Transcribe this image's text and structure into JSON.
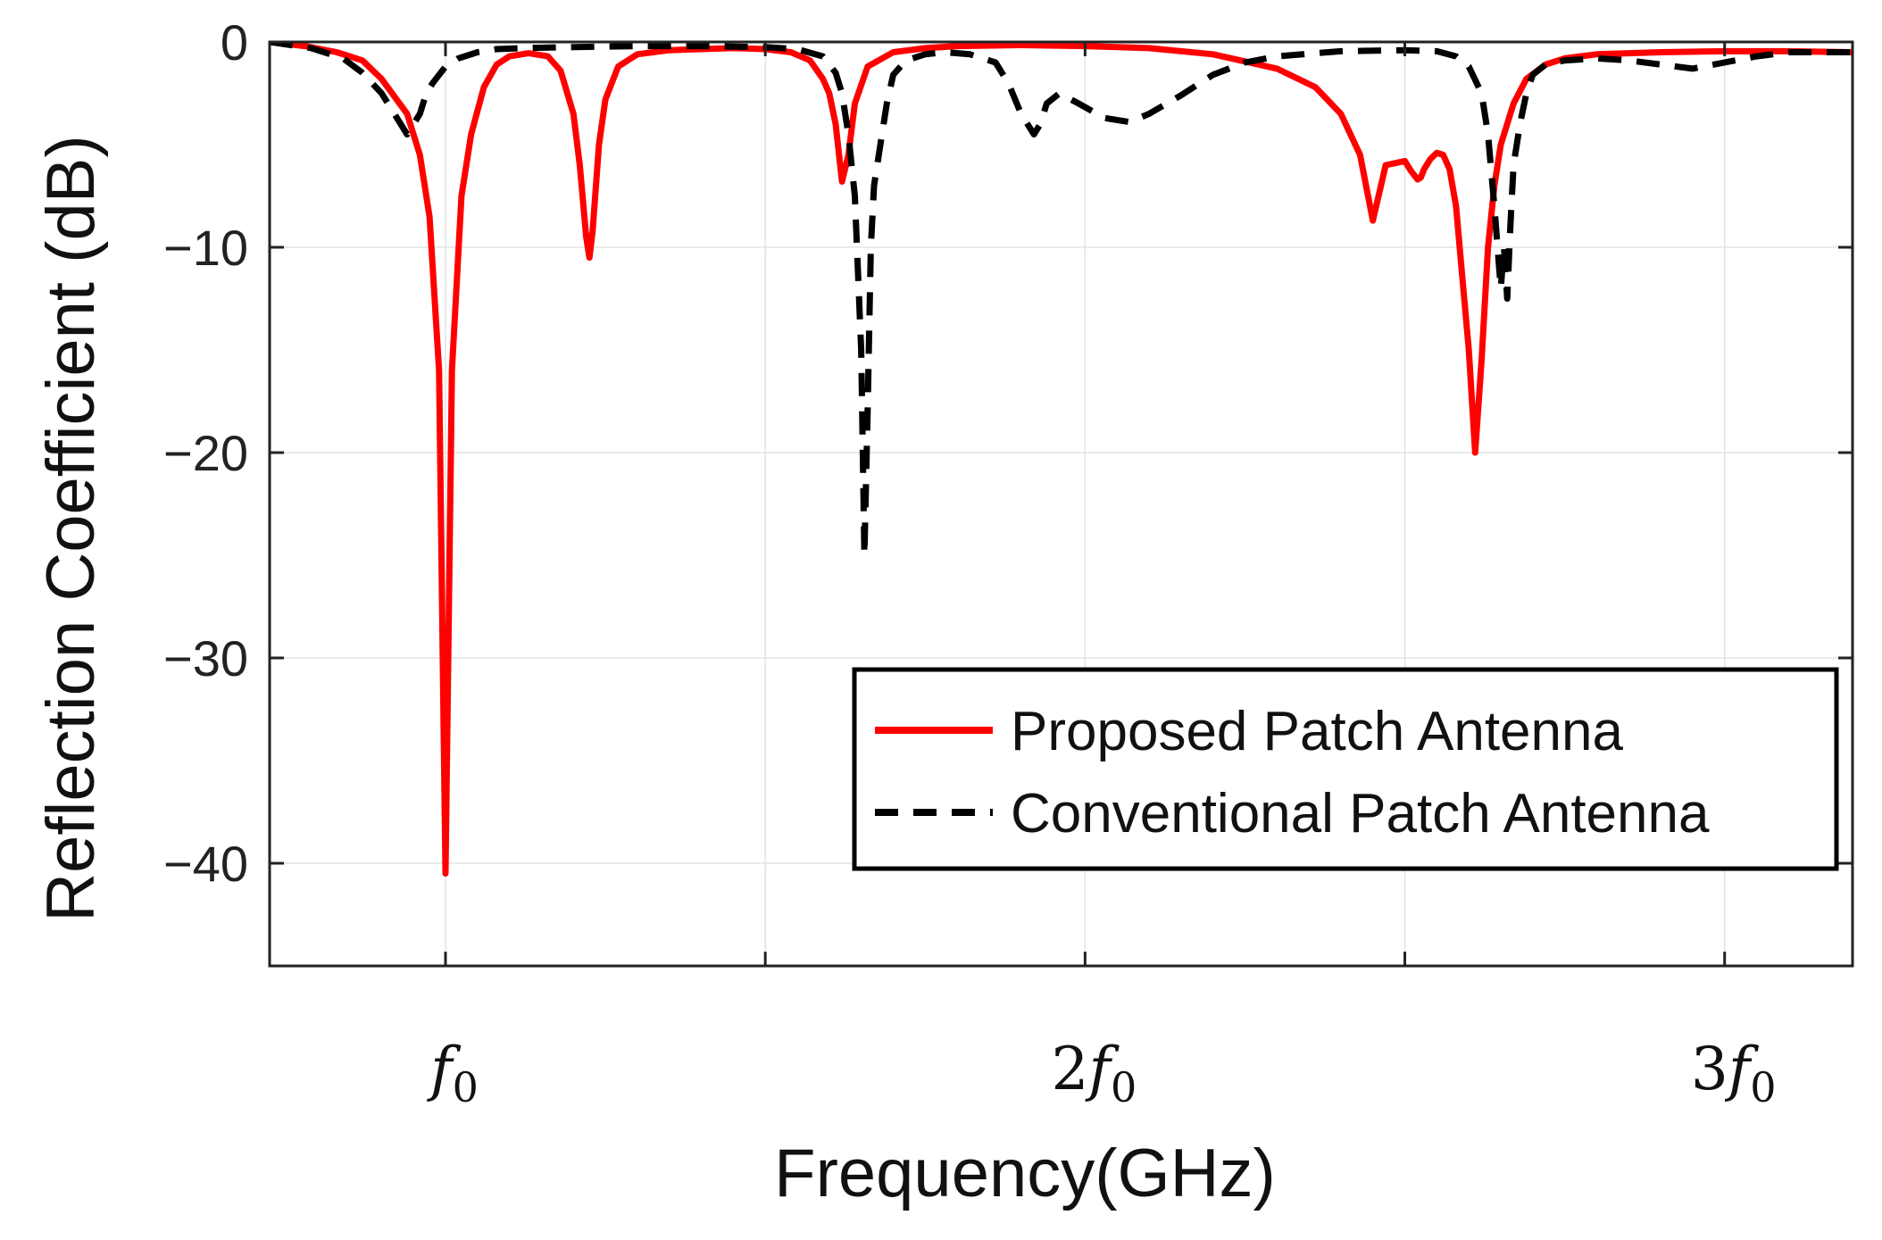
{
  "chart_data": {
    "type": "line",
    "title": "",
    "xlabel": "Frequency(GHz)",
    "ylabel": "Reflection Coefficient (dB)",
    "xlim": [
      0.725,
      3.2
    ],
    "ylim": [
      -45,
      0
    ],
    "grid": true,
    "legend_position": "bottom-right",
    "y_ticks": [
      {
        "value": 0,
        "label": "0"
      },
      {
        "value": -10,
        "label": "−10"
      },
      {
        "value": -20,
        "label": "−20"
      },
      {
        "value": -30,
        "label": "−30"
      },
      {
        "value": -40,
        "label": "−40"
      }
    ],
    "x_ticks": [
      {
        "value": 1.0,
        "coef": "",
        "sub": "0"
      },
      {
        "value": 2.0,
        "coef": "2",
        "sub": "0"
      },
      {
        "value": 3.0,
        "coef": "3",
        "sub": "0"
      }
    ],
    "x_grid": [
      1.0,
      1.5,
      2.0,
      2.5,
      3.0
    ],
    "series": [
      {
        "name": "Proposed Patch Antenna",
        "color": "#ff0000",
        "style": "solid",
        "x": [
          0.725,
          0.78,
          0.83,
          0.87,
          0.9,
          0.94,
          0.96,
          0.975,
          0.99,
          1.0,
          1.01,
          1.025,
          1.04,
          1.06,
          1.08,
          1.1,
          1.13,
          1.16,
          1.18,
          1.2,
          1.21,
          1.22,
          1.225,
          1.23,
          1.24,
          1.25,
          1.27,
          1.3,
          1.35,
          1.4,
          1.45,
          1.5,
          1.54,
          1.57,
          1.59,
          1.6,
          1.61,
          1.62,
          1.63,
          1.64,
          1.66,
          1.7,
          1.75,
          1.8,
          1.9,
          2.0,
          2.1,
          2.2,
          2.3,
          2.36,
          2.4,
          2.43,
          2.45,
          2.47,
          2.5,
          2.51,
          2.52,
          2.525,
          2.53,
          2.54,
          2.55,
          2.56,
          2.57,
          2.58,
          2.59,
          2.6,
          2.61,
          2.62,
          2.63,
          2.64,
          2.65,
          2.67,
          2.69,
          2.72,
          2.75,
          2.8,
          2.9,
          3.0,
          3.1,
          3.2
        ],
        "y": [
          0,
          -0.2,
          -0.5,
          -0.9,
          -1.8,
          -3.5,
          -5.5,
          -8.5,
          -16,
          -40.5,
          -16,
          -7.5,
          -4.5,
          -2.2,
          -1.1,
          -0.7,
          -0.55,
          -0.7,
          -1.4,
          -3.5,
          -6.0,
          -9.5,
          -10.5,
          -9.2,
          -5.0,
          -2.8,
          -1.2,
          -0.6,
          -0.4,
          -0.35,
          -0.3,
          -0.35,
          -0.5,
          -0.9,
          -1.8,
          -2.5,
          -4.0,
          -6.8,
          -5.5,
          -3.0,
          -1.2,
          -0.5,
          -0.3,
          -0.2,
          -0.15,
          -0.2,
          -0.3,
          -0.6,
          -1.3,
          -2.2,
          -3.5,
          -5.5,
          -8.7,
          -6.0,
          -5.8,
          -6.3,
          -6.7,
          -6.6,
          -6.2,
          -5.7,
          -5.4,
          -5.5,
          -6.2,
          -8.0,
          -11.5,
          -15.0,
          -20.0,
          -15.5,
          -10.0,
          -7.0,
          -5.0,
          -3.0,
          -1.8,
          -1.1,
          -0.8,
          -0.6,
          -0.5,
          -0.45,
          -0.45,
          -0.5
        ]
      },
      {
        "name": "Conventional Patch Antenna",
        "color": "#000000",
        "style": "dashed",
        "x": [
          0.725,
          0.79,
          0.84,
          0.87,
          0.9,
          0.92,
          0.94,
          0.96,
          0.97,
          0.98,
          1.0,
          1.02,
          1.05,
          1.08,
          1.12,
          1.2,
          1.3,
          1.4,
          1.5,
          1.55,
          1.59,
          1.61,
          1.62,
          1.63,
          1.64,
          1.65,
          1.655,
          1.66,
          1.665,
          1.67,
          1.68,
          1.69,
          1.7,
          1.72,
          1.75,
          1.78,
          1.82,
          1.86,
          1.88,
          1.9,
          1.92,
          1.93,
          1.94,
          1.96,
          1.99,
          2.03,
          2.07,
          2.1,
          2.15,
          2.2,
          2.25,
          2.3,
          2.4,
          2.5,
          2.55,
          2.58,
          2.6,
          2.62,
          2.63,
          2.64,
          2.65,
          2.655,
          2.66,
          2.665,
          2.67,
          2.68,
          2.69,
          2.7,
          2.72,
          2.75,
          2.8,
          2.85,
          2.9,
          2.95,
          3.0,
          3.05,
          3.1,
          3.2
        ],
        "y": [
          0,
          -0.3,
          -0.8,
          -1.5,
          -2.5,
          -3.5,
          -4.5,
          -3.5,
          -2.5,
          -2.0,
          -1.2,
          -0.8,
          -0.5,
          -0.35,
          -0.3,
          -0.25,
          -0.2,
          -0.2,
          -0.25,
          -0.35,
          -0.7,
          -1.5,
          -2.5,
          -4.5,
          -7.5,
          -15,
          -25,
          -18,
          -10,
          -7.0,
          -5.0,
          -3.0,
          -1.6,
          -0.9,
          -0.6,
          -0.5,
          -0.6,
          -1.0,
          -2.0,
          -3.5,
          -4.5,
          -4.0,
          -3.0,
          -2.5,
          -3.0,
          -3.7,
          -3.9,
          -3.5,
          -2.6,
          -1.6,
          -1.0,
          -0.7,
          -0.45,
          -0.4,
          -0.45,
          -0.7,
          -1.2,
          -2.5,
          -4.5,
          -8.0,
          -12.0,
          -10.0,
          -12.5,
          -9.0,
          -6.0,
          -4.0,
          -2.5,
          -1.6,
          -1.1,
          -0.9,
          -0.8,
          -0.9,
          -1.1,
          -1.3,
          -1.0,
          -0.7,
          -0.5,
          -0.5
        ]
      }
    ]
  }
}
